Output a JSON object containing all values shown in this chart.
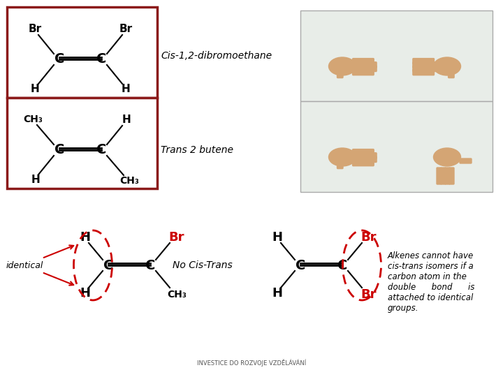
{
  "bg_color": "#ffffff",
  "title": "",
  "cis_label": "Cis-1,2-dibromoethane",
  "trans_label": "Trans 2 butene",
  "identical_label": "identical",
  "no_cis_trans_label": "No Cis-Trans",
  "alkenes_text": "Alkenes cannot have\ncis-trans isomers if a\ncarbon atom in the\ndouble      bond      is\nattached to identical\ngroups.",
  "box_color": "#8b1a1a",
  "red_color": "#cc0000",
  "black_color": "#000000",
  "gray_bg": "#e8ede8"
}
